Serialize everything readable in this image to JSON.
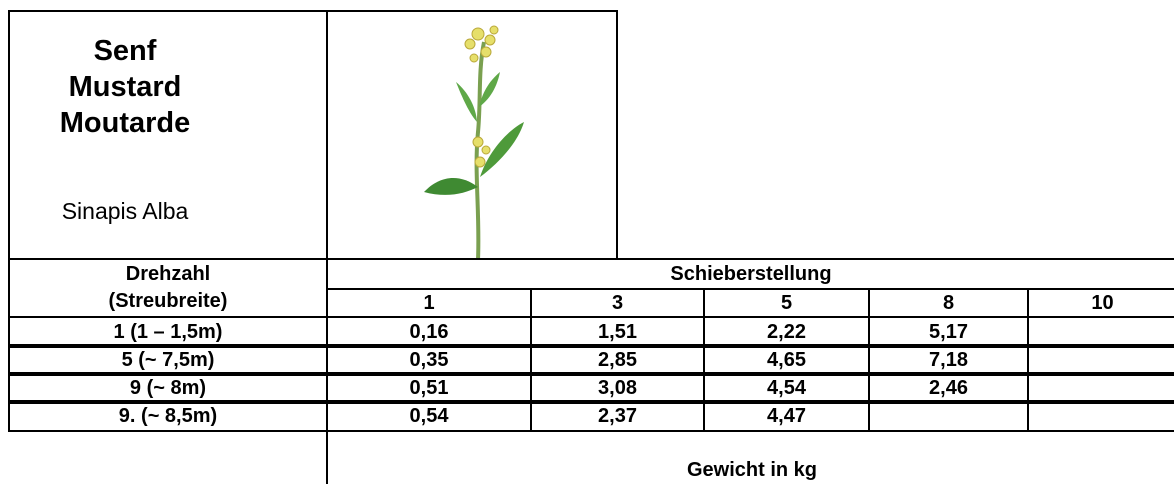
{
  "header": {
    "title_de": "Senf",
    "title_en": "Mustard",
    "title_fr": "Moutarde",
    "scientific_name": "Sinapis Alba"
  },
  "table": {
    "row_header_top": "Drehzahl",
    "row_header_bottom": "(Streubreite)",
    "column_group": "Schieberstellung",
    "columns": [
      "1",
      "3",
      "5",
      "8",
      "10"
    ],
    "rows": [
      [
        "1 (1 – 1,5m)",
        "0,16",
        "1,51",
        "2,22",
        "5,17",
        null
      ],
      [
        "5 (~ 7,5m)",
        "0,35",
        "2,85",
        "4,65",
        "7,18",
        null
      ],
      [
        "9 (~ 8m)",
        "0,51",
        "3,08",
        "4,54",
        "2,46",
        null
      ],
      [
        "9. (~ 8,5m)",
        "0,54",
        "2,37",
        "4,47",
        null,
        null
      ]
    ],
    "footer": "Gewicht in kg"
  }
}
